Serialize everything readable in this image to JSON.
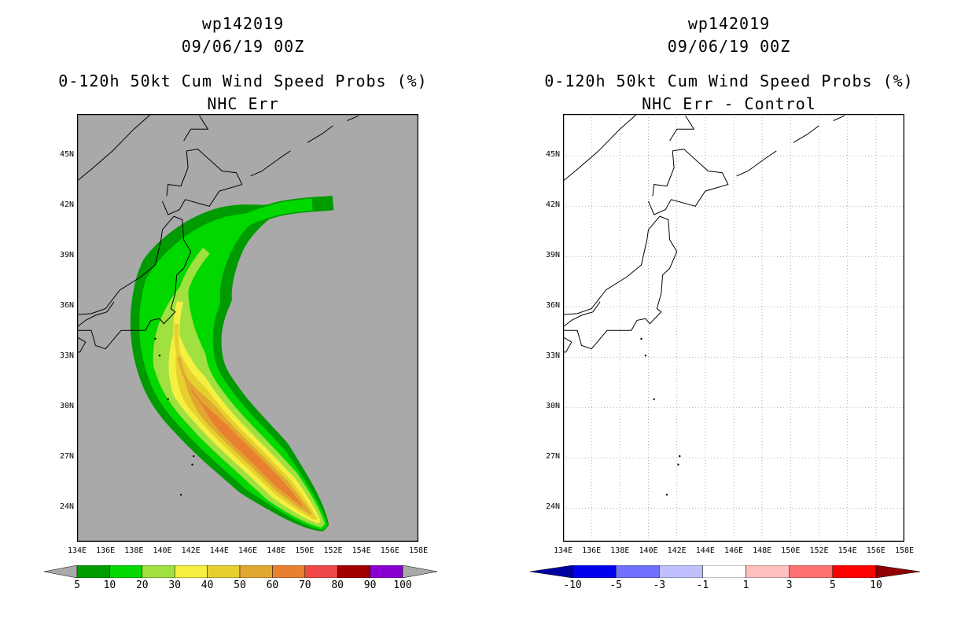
{
  "colors": {
    "land_bg": "#a9a9a9",
    "coast": "#000000",
    "grid": "#b0b0b0",
    "prob_bins": [
      "#009b00",
      "#00d800",
      "#a0e040",
      "#f5f040",
      "#e6d030",
      "#e0a830",
      "#e88030",
      "#f04848",
      "#a00000",
      "#8a00d0"
    ],
    "diff_bins": [
      "#0000a0",
      "#0000f0",
      "#7070ff",
      "#c0c0ff",
      "#ffffff",
      "#ffc0c0",
      "#ff7070",
      "#ff0000",
      "#900000"
    ]
  },
  "left_panel": {
    "storm_id": "wp142019",
    "datetime": "09/06/19 00Z",
    "product": "0-120h 50kt Cum Wind Speed Probs (%)",
    "subtitle": "NHC Err",
    "legend_labels": [
      "5",
      "10",
      "20",
      "30",
      "40",
      "50",
      "60",
      "70",
      "80",
      "90",
      "100"
    ]
  },
  "right_panel": {
    "storm_id": "wp142019",
    "datetime": "09/06/19 00Z",
    "product": "0-120h 50kt Cum Wind Speed Probs (%)",
    "subtitle": "NHC Err - Control",
    "legend_labels": [
      "-10",
      "-5",
      "-3",
      "-1",
      "1",
      "3",
      "5",
      "10"
    ]
  },
  "chart_data": [
    {
      "type": "heatmap",
      "title": "0-120h 50kt Cum Wind Speed Probs (%)",
      "subtitle": "NHC Err",
      "x_ticks": [
        "134E",
        "136E",
        "138E",
        "140E",
        "142E",
        "144E",
        "146E",
        "148E",
        "150E",
        "152E",
        "154E",
        "156E",
        "158E"
      ],
      "y_ticks": [
        "24N",
        "27N",
        "30N",
        "33N",
        "36N",
        "39N",
        "42N",
        "45N"
      ],
      "xlim": [
        134,
        158
      ],
      "ylim": [
        22,
        47.5
      ],
      "grid": false,
      "legend_bins": [
        5,
        10,
        20,
        30,
        40,
        50,
        60,
        70,
        80,
        90,
        100
      ],
      "max_probability_band": "60-70",
      "swath_axis": [
        [
          151.5,
          22.8
        ],
        [
          150,
          24
        ],
        [
          147,
          26.5
        ],
        [
          143.5,
          29.5
        ],
        [
          141.5,
          32
        ],
        [
          141,
          35
        ],
        [
          142,
          38
        ],
        [
          144.5,
          40.5
        ],
        [
          148,
          41.8
        ],
        [
          152,
          42.2
        ]
      ]
    },
    {
      "type": "heatmap",
      "title": "0-120h 50kt Cum Wind Speed Probs (%)",
      "subtitle": "NHC Err - Control",
      "x_ticks": [
        "134E",
        "136E",
        "138E",
        "140E",
        "142E",
        "144E",
        "146E",
        "148E",
        "150E",
        "152E",
        "154E",
        "156E",
        "158E"
      ],
      "y_ticks": [
        "24N",
        "27N",
        "30N",
        "33N",
        "36N",
        "39N",
        "42N",
        "45N"
      ],
      "xlim": [
        134,
        158
      ],
      "ylim": [
        22,
        47.5
      ],
      "grid": true,
      "legend_bins": [
        -10,
        -5,
        -3,
        -1,
        1,
        3,
        5,
        10
      ],
      "difference_field": "all within -1 to 1"
    }
  ]
}
